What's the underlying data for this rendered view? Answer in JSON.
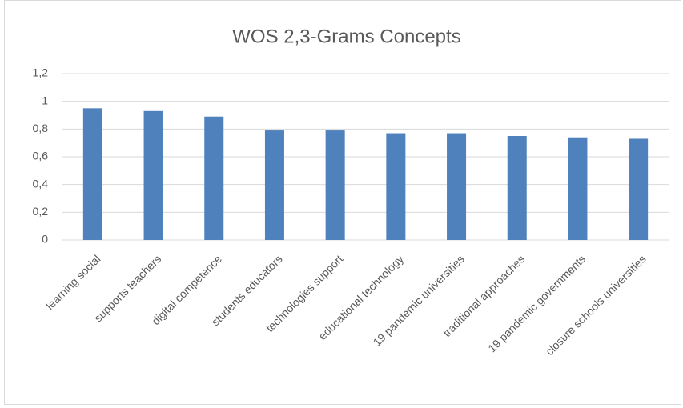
{
  "chart_data": {
    "type": "bar",
    "title": "WOS 2,3-Grams Concepts",
    "categories": [
      "learning social",
      "supports teachers",
      "digital competence",
      "students educators",
      "technologies support",
      "educational technology",
      "19 pandemic universities",
      "traditional approaches",
      "19 pandemic governments",
      "closure schools universities"
    ],
    "values": [
      0.95,
      0.93,
      0.89,
      0.79,
      0.79,
      0.77,
      0.77,
      0.75,
      0.74,
      0.73
    ],
    "color": "#4f81bd",
    "ylim": [
      0,
      1.2
    ],
    "yticks": [
      0,
      {
        "value": 0.2,
        "label": "0,2"
      },
      {
        "value": 0.4,
        "label": "0,4"
      },
      {
        "value": 0.6,
        "label": "0,6"
      },
      {
        "value": 0.8,
        "label": "0,8"
      },
      1,
      {
        "value": 1.2,
        "label": "1,2"
      }
    ],
    "grid": true
  }
}
